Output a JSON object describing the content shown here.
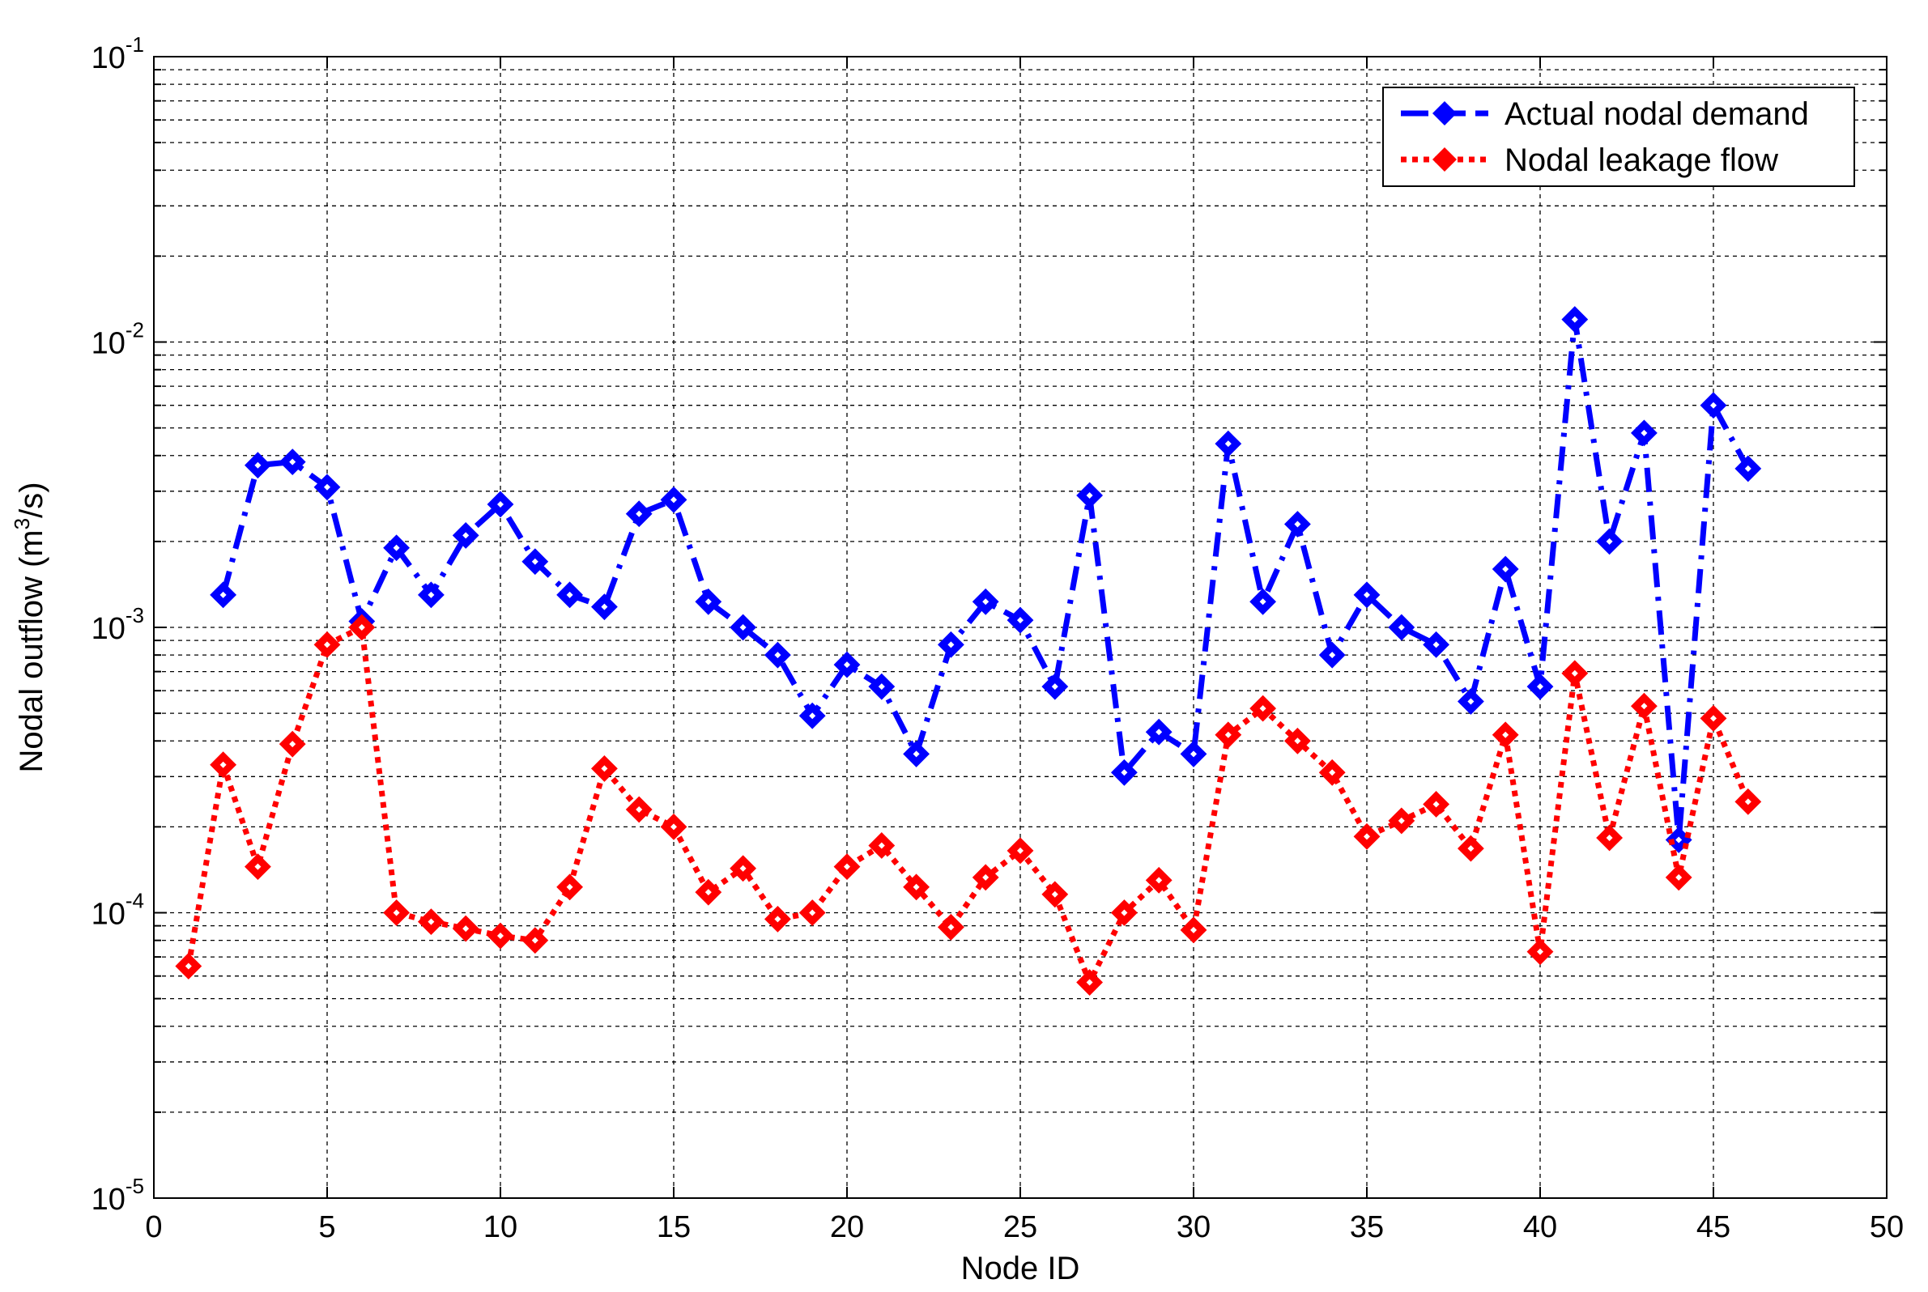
{
  "chart_data": {
    "type": "line",
    "xlabel": "Node ID",
    "ylabel": "Nodal outflow (m³/s)",
    "ylabel_parts": {
      "prefix": "Nodal outflow (m",
      "sup": "3",
      "suffix": "/s)"
    },
    "xlim": [
      0,
      50
    ],
    "ylim": [
      1e-05,
      0.1
    ],
    "y_scale": "log",
    "grid": true,
    "legend_position": "top-right",
    "x_ticks": [
      0,
      5,
      10,
      15,
      20,
      25,
      30,
      35,
      40,
      45,
      50
    ],
    "x_tick_labels": [
      "0",
      "5",
      "10",
      "15",
      "20",
      "25",
      "30",
      "35",
      "40",
      "45",
      "50"
    ],
    "y_ticks": [
      1e-05,
      0.0001,
      0.001,
      0.01,
      0.1
    ],
    "y_tick_labels": [
      {
        "base": "10",
        "exp": "-5"
      },
      {
        "base": "10",
        "exp": "-4"
      },
      {
        "base": "10",
        "exp": "-3"
      },
      {
        "base": "10",
        "exp": "-2"
      },
      {
        "base": "10",
        "exp": "-1"
      }
    ],
    "series": [
      {
        "name": "Actual nodal demand",
        "color": "#0000ff",
        "line_style": "dash-dot",
        "marker": "diamond",
        "x": [
          2,
          3,
          4,
          5,
          6,
          7,
          8,
          9,
          10,
          11,
          12,
          13,
          14,
          15,
          16,
          17,
          18,
          19,
          20,
          21,
          22,
          23,
          24,
          25,
          26,
          27,
          28,
          29,
          30,
          31,
          32,
          33,
          34,
          35,
          36,
          37,
          38,
          39,
          40,
          41,
          42,
          43,
          44,
          45,
          46
        ],
        "y": [
          0.0013,
          0.0037,
          0.0038,
          0.0031,
          0.00105,
          0.0019,
          0.0013,
          0.0021,
          0.0027,
          0.0017,
          0.0013,
          0.00118,
          0.0025,
          0.0028,
          0.00123,
          0.001,
          0.0008,
          0.00049,
          0.00074,
          0.00062,
          0.00036,
          0.00087,
          0.00123,
          0.00106,
          0.00062,
          0.0029,
          0.00031,
          0.00043,
          0.00036,
          0.0044,
          0.00123,
          0.0023,
          0.0008,
          0.0013,
          0.001,
          0.00087,
          0.00055,
          0.0016,
          0.00062,
          0.012,
          0.002,
          0.0048,
          0.00018,
          0.006,
          0.0036
        ]
      },
      {
        "name": "Nodal leakage flow",
        "color": "#ff0000",
        "line_style": "dotted",
        "marker": "diamond",
        "x": [
          1,
          2,
          3,
          4,
          5,
          6,
          7,
          8,
          9,
          10,
          11,
          12,
          13,
          14,
          15,
          16,
          17,
          18,
          19,
          20,
          21,
          22,
          23,
          24,
          25,
          26,
          27,
          28,
          29,
          30,
          31,
          32,
          33,
          34,
          35,
          36,
          37,
          38,
          39,
          40,
          41,
          42,
          43,
          44,
          45,
          46
        ],
        "y": [
          6.5e-05,
          0.00033,
          0.000145,
          0.00039,
          0.00087,
          0.001,
          0.0001,
          9.3e-05,
          8.8e-05,
          8.3e-05,
          8e-05,
          0.000123,
          0.00032,
          0.00023,
          0.0002,
          0.000118,
          0.000143,
          9.5e-05,
          0.0001,
          0.000145,
          0.000172,
          0.000123,
          8.9e-05,
          0.000133,
          0.000165,
          0.000116,
          5.7e-05,
          0.0001,
          0.00013,
          8.7e-05,
          0.00042,
          0.00052,
          0.0004,
          0.00031,
          0.000185,
          0.00021,
          0.00024,
          0.000168,
          0.00042,
          7.3e-05,
          0.00069,
          0.000183,
          0.00053,
          0.000133,
          0.00048,
          0.000245
        ]
      }
    ]
  }
}
